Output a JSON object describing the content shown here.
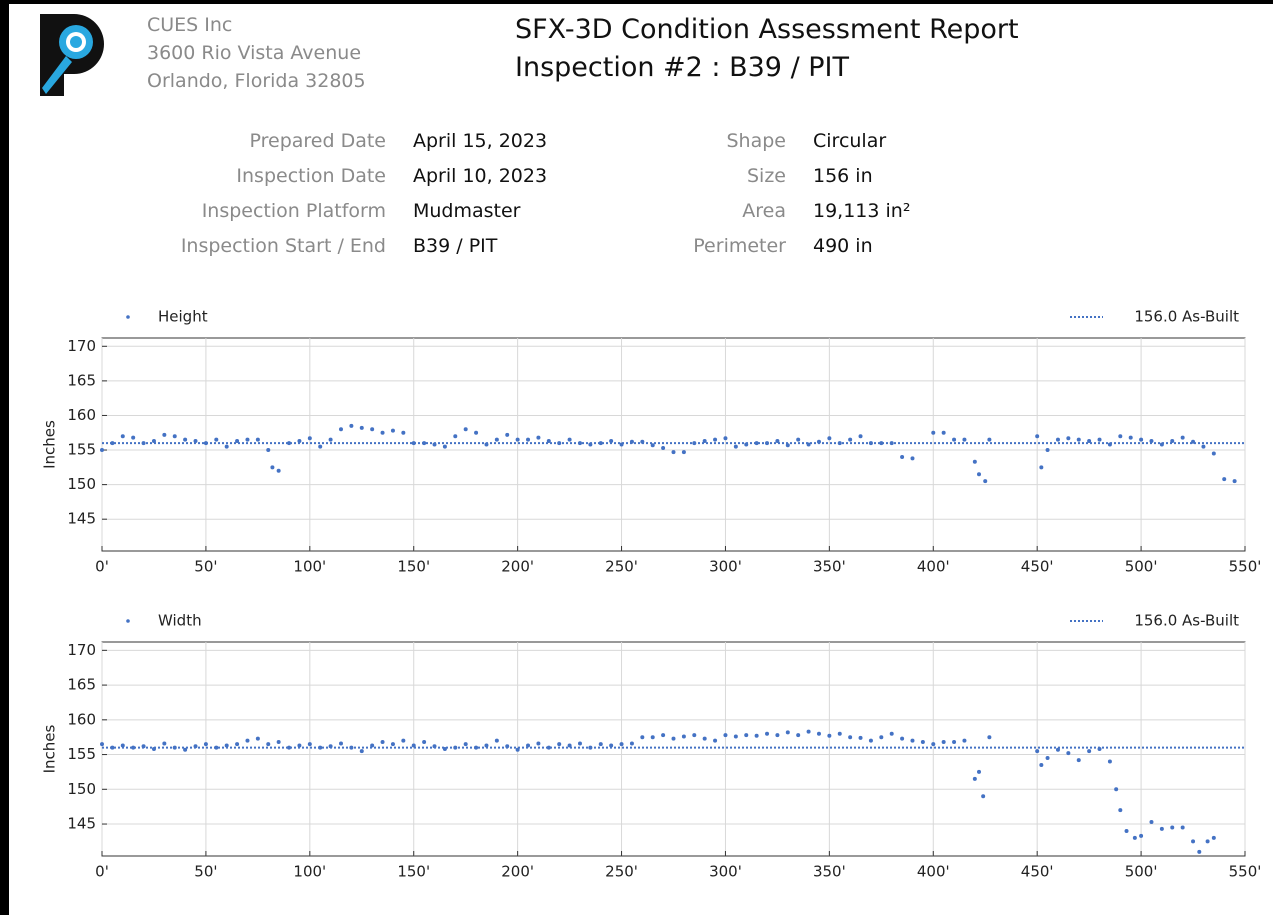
{
  "header": {
    "company": [
      "CUES Inc",
      "3600 Rio Vista Avenue",
      "Orlando, Florida 32805"
    ],
    "title": [
      "SFX-3D Condition Assessment Report",
      "Inspection #2 : B39 / PIT"
    ]
  },
  "info": {
    "left": [
      {
        "label": "Prepared Date",
        "value": "April 15, 2023"
      },
      {
        "label": "Inspection Date",
        "value": "April 10, 2023"
      },
      {
        "label": "Inspection Platform",
        "value": "Mudmaster"
      },
      {
        "label": "Inspection Start / End",
        "value": "B39 / PIT"
      }
    ],
    "right": [
      {
        "label": "Shape",
        "value": "Circular"
      },
      {
        "label": "Size",
        "value": "156 in"
      },
      {
        "label": "Area",
        "value": "19,113 in²"
      },
      {
        "label": "Perimeter",
        "value": "490 in"
      }
    ]
  },
  "chart_data": [
    {
      "type": "scatter",
      "ylabel": "Inches",
      "xlim": [
        0,
        550
      ],
      "ylim": [
        140.4,
        171.2
      ],
      "grid": true,
      "xticks": [
        {
          "value": 0,
          "label": "0'"
        },
        {
          "value": 50,
          "label": "50'"
        },
        {
          "value": 100,
          "label": "100'"
        },
        {
          "value": 150,
          "label": "150'"
        },
        {
          "value": 200,
          "label": "200'"
        },
        {
          "value": 250,
          "label": "250'"
        },
        {
          "value": 300,
          "label": "300'"
        },
        {
          "value": 350,
          "label": "350'"
        },
        {
          "value": 400,
          "label": "400'"
        },
        {
          "value": 450,
          "label": "450'"
        },
        {
          "value": 500,
          "label": "500'"
        },
        {
          "value": 550,
          "label": "550'"
        }
      ],
      "yticks": [
        145,
        150,
        155,
        160,
        165,
        170
      ],
      "reference": {
        "value": 156.0,
        "label": "156.0 As-Built",
        "color": "#4472c4"
      },
      "series": [
        {
          "name": "Height",
          "color": "#4472c4",
          "x": [
            0,
            5,
            10,
            15,
            20,
            25,
            30,
            35,
            40,
            45,
            50,
            55,
            60,
            65,
            70,
            75,
            80,
            82,
            85,
            90,
            95,
            100,
            105,
            110,
            115,
            120,
            125,
            130,
            135,
            140,
            145,
            150,
            155,
            160,
            165,
            170,
            175,
            180,
            185,
            190,
            195,
            200,
            205,
            210,
            215,
            220,
            225,
            230,
            235,
            240,
            245,
            250,
            255,
            260,
            265,
            270,
            275,
            280,
            285,
            290,
            295,
            300,
            305,
            310,
            315,
            320,
            325,
            330,
            335,
            340,
            345,
            350,
            355,
            360,
            365,
            370,
            375,
            380,
            385,
            390,
            400,
            405,
            410,
            415,
            420,
            422,
            425,
            427,
            450,
            452,
            455,
            460,
            465,
            470,
            475,
            480,
            485,
            490,
            495,
            500,
            505,
            510,
            515,
            520,
            525,
            530,
            535,
            540,
            545
          ],
          "values": [
            155,
            156,
            157,
            156.8,
            156,
            156.3,
            157.2,
            157,
            156.5,
            156.3,
            156,
            156.5,
            155.5,
            156.3,
            156.5,
            156.5,
            155,
            152.5,
            152,
            156,
            156.3,
            156.7,
            155.5,
            156.5,
            158,
            158.5,
            158.2,
            158,
            157.5,
            157.8,
            157.5,
            156,
            156,
            155.8,
            155.5,
            157,
            158,
            157.5,
            155.8,
            156.5,
            157.2,
            156.5,
            156.5,
            156.8,
            156.3,
            156,
            156.5,
            156,
            155.8,
            156,
            156.3,
            155.8,
            156.2,
            156.2,
            155.7,
            155.3,
            154.7,
            154.7,
            156,
            156.3,
            156.5,
            156.7,
            155.5,
            155.8,
            156,
            156,
            156.3,
            155.7,
            156.5,
            155.8,
            156.2,
            156.7,
            156,
            156.5,
            157,
            156,
            156,
            156,
            154,
            153.8,
            157.5,
            157.5,
            156.5,
            156.5,
            153.3,
            151.5,
            150.5,
            156.5,
            157,
            152.5,
            155,
            156.5,
            156.7,
            156.5,
            156.3,
            156.5,
            155.8,
            157,
            156.8,
            156.5,
            156.3,
            155.8,
            156.3,
            156.8,
            156.2,
            155.5,
            154.5,
            150.8,
            150.5
          ]
        }
      ]
    },
    {
      "type": "scatter",
      "ylabel": "Inches",
      "xlim": [
        0,
        550
      ],
      "ylim": [
        140.4,
        171.2
      ],
      "grid": true,
      "xticks": [
        {
          "value": 0,
          "label": "0'"
        },
        {
          "value": 50,
          "label": "50'"
        },
        {
          "value": 100,
          "label": "100'"
        },
        {
          "value": 150,
          "label": "150'"
        },
        {
          "value": 200,
          "label": "200'"
        },
        {
          "value": 250,
          "label": "250'"
        },
        {
          "value": 300,
          "label": "300'"
        },
        {
          "value": 350,
          "label": "350'"
        },
        {
          "value": 400,
          "label": "400'"
        },
        {
          "value": 450,
          "label": "450'"
        },
        {
          "value": 500,
          "label": "500'"
        },
        {
          "value": 550,
          "label": "550'"
        }
      ],
      "yticks": [
        145,
        150,
        155,
        160,
        165,
        170
      ],
      "reference": {
        "value": 156.0,
        "label": "156.0 As-Built",
        "color": "#4472c4"
      },
      "series": [
        {
          "name": "Width",
          "color": "#4472c4",
          "x": [
            0,
            5,
            10,
            15,
            20,
            25,
            30,
            35,
            40,
            45,
            50,
            55,
            60,
            65,
            70,
            75,
            80,
            85,
            90,
            95,
            100,
            105,
            110,
            115,
            120,
            125,
            130,
            135,
            140,
            145,
            150,
            155,
            160,
            165,
            170,
            175,
            180,
            185,
            190,
            195,
            200,
            205,
            210,
            215,
            220,
            225,
            230,
            235,
            240,
            245,
            250,
            255,
            260,
            265,
            270,
            275,
            280,
            285,
            290,
            295,
            300,
            305,
            310,
            315,
            320,
            325,
            330,
            335,
            340,
            345,
            350,
            355,
            360,
            365,
            370,
            375,
            380,
            385,
            390,
            395,
            400,
            405,
            410,
            415,
            420,
            422,
            424,
            427,
            450,
            452,
            455,
            460,
            465,
            470,
            475,
            480,
            485,
            488,
            490,
            493,
            497,
            500,
            505,
            510,
            515,
            520,
            525,
            528,
            532,
            535
          ],
          "values": [
            156.5,
            156,
            156.3,
            156,
            156.2,
            155.8,
            156.6,
            156,
            155.7,
            156.2,
            156.5,
            156,
            156.3,
            156.5,
            157,
            157.3,
            156.5,
            156.8,
            156,
            156.3,
            156.5,
            156,
            156.2,
            156.6,
            156,
            155.5,
            156.3,
            156.8,
            156.5,
            157,
            156.3,
            156.8,
            156.2,
            155.8,
            156,
            156.5,
            156,
            156.3,
            157,
            156.2,
            155.7,
            156.3,
            156.6,
            156,
            156.5,
            156.3,
            156.6,
            156,
            156.5,
            156.3,
            156.5,
            156.6,
            157.5,
            157.5,
            157.8,
            157.3,
            157.6,
            157.8,
            157.3,
            157,
            157.8,
            157.6,
            157.8,
            157.7,
            158,
            157.8,
            158.2,
            157.8,
            158.3,
            158,
            157.7,
            158,
            157.5,
            157.4,
            157,
            157.5,
            158,
            157.3,
            157,
            156.8,
            156.5,
            156.8,
            156.8,
            157,
            151.5,
            152.5,
            149,
            157.5,
            155.5,
            153.5,
            154.5,
            155.7,
            155.2,
            154.2,
            155.5,
            155.8,
            154,
            150,
            147,
            144,
            143,
            143.3,
            145.3,
            144.3,
            144.5,
            144.5,
            142.5,
            141,
            142.5,
            143
          ]
        }
      ]
    }
  ]
}
